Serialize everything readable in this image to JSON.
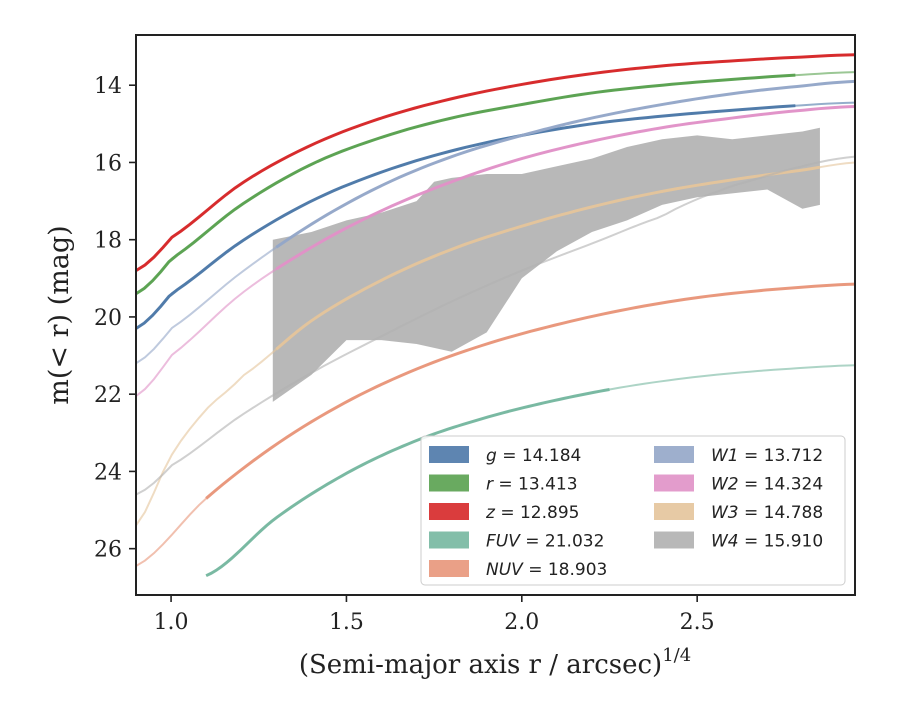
{
  "chart_data": {
    "type": "line",
    "title": "",
    "xlabel": "(Semi-major axis r / arcsec)",
    "xlabel_sup": "1/4",
    "ylabel": "m(< r) (mag)",
    "xlim": [
      0.9,
      2.95
    ],
    "ylim": [
      27.2,
      12.7
    ],
    "y_inverted": true,
    "grid": false,
    "legend_position": "lower-right",
    "xticks": [
      1.0,
      1.5,
      2.0,
      2.5
    ],
    "xtick_labels": [
      "1.0",
      "1.5",
      "2.0",
      "2.5"
    ],
    "yticks": [
      14,
      16,
      18,
      20,
      22,
      24,
      26
    ],
    "ytick_labels": [
      "14",
      "16",
      "18",
      "20",
      "22",
      "24",
      "26"
    ],
    "series": [
      {
        "name": "g",
        "legend_label": "g = 14.184",
        "color": "#4c78a8",
        "type": "curve",
        "x_fit": [
          0.9,
          1.0,
          1.2,
          1.4,
          1.6,
          1.8,
          2.0,
          2.2,
          2.4,
          2.6,
          2.8,
          2.95
        ],
        "y_fit": [
          20.3,
          19.4,
          18.05,
          17.0,
          16.25,
          15.7,
          15.3,
          15.0,
          14.8,
          14.65,
          14.52,
          14.45
        ],
        "x_data_range": [
          0.9,
          2.78
        ]
      },
      {
        "name": "r",
        "legend_label": "r = 13.413",
        "color": "#59a14f",
        "type": "curve",
        "x_fit": [
          0.9,
          1.0,
          1.2,
          1.4,
          1.6,
          1.8,
          2.0,
          2.2,
          2.4,
          2.6,
          2.8,
          2.95
        ],
        "y_fit": [
          19.4,
          18.5,
          17.1,
          16.05,
          15.35,
          14.85,
          14.5,
          14.2,
          14.0,
          13.85,
          13.73,
          13.66
        ],
        "x_data_range": [
          0.9,
          2.78
        ]
      },
      {
        "name": "z",
        "legend_label": "z = 12.895",
        "color": "#d62728",
        "type": "curve",
        "x_fit": [
          0.9,
          1.0,
          1.2,
          1.4,
          1.6,
          1.8,
          2.0,
          2.2,
          2.4,
          2.6,
          2.8,
          2.95
        ],
        "y_fit": [
          18.8,
          17.95,
          16.55,
          15.55,
          14.85,
          14.35,
          13.98,
          13.7,
          13.5,
          13.37,
          13.27,
          13.21
        ],
        "x_data_range": [
          0.9,
          2.95
        ]
      },
      {
        "name": "FUV",
        "legend_label": "FUV = 21.032",
        "color": "#76b7a0",
        "type": "curve",
        "x_fit": [
          1.1,
          1.3,
          1.5,
          1.7,
          1.9,
          2.1,
          2.3,
          2.5,
          2.7,
          2.95
        ],
        "y_fit": [
          26.7,
          25.2,
          24.05,
          23.2,
          22.6,
          22.15,
          21.8,
          21.55,
          21.38,
          21.25
        ],
        "x_data_range": [
          1.1,
          2.25
        ]
      },
      {
        "name": "NUV",
        "legend_label": "NUV = 18.903",
        "color": "#e8967a",
        "type": "curve",
        "x_fit": [
          0.9,
          1.1,
          1.3,
          1.5,
          1.7,
          1.9,
          2.1,
          2.3,
          2.5,
          2.7,
          2.95
        ],
        "y_fit": [
          26.45,
          24.7,
          23.3,
          22.2,
          21.35,
          20.7,
          20.2,
          19.8,
          19.5,
          19.3,
          19.15
        ],
        "x_data_range": [
          1.1,
          2.95
        ]
      },
      {
        "name": "W1",
        "legend_label": "W1 = 13.712",
        "color": "#94a6c8",
        "type": "curve",
        "x_fit": [
          0.9,
          1.0,
          1.2,
          1.4,
          1.6,
          1.8,
          2.0,
          2.2,
          2.4,
          2.6,
          2.8,
          2.95
        ],
        "y_fit": [
          21.2,
          20.3,
          18.85,
          17.6,
          16.6,
          15.85,
          15.3,
          14.85,
          14.5,
          14.22,
          14.02,
          13.9
        ],
        "x_data_range": [
          1.3,
          2.95
        ]
      },
      {
        "name": "W2",
        "legend_label": "W2 = 14.324",
        "color": "#e091c7",
        "type": "curve",
        "x_fit": [
          0.9,
          1.0,
          1.2,
          1.4,
          1.6,
          1.8,
          2.0,
          2.2,
          2.4,
          2.6,
          2.8,
          2.95
        ],
        "y_fit": [
          22.05,
          21.0,
          19.4,
          18.2,
          17.25,
          16.5,
          15.9,
          15.45,
          15.1,
          14.85,
          14.65,
          14.55
        ],
        "x_data_range": [
          1.3,
          2.95
        ]
      },
      {
        "name": "W3",
        "legend_label": "W3 = 14.788",
        "color": "#e4c49b",
        "type": "curve",
        "x_fit": [
          0.9,
          1.0,
          1.1,
          1.2,
          1.4,
          1.6,
          1.8,
          2.0,
          2.2,
          2.4,
          2.6,
          2.8,
          2.95
        ],
        "y_fit": [
          25.4,
          23.6,
          22.4,
          21.55,
          20.1,
          19.05,
          18.25,
          17.65,
          17.15,
          16.75,
          16.45,
          16.2,
          16.0
        ],
        "x_data_range": [
          1.3,
          2.85
        ]
      },
      {
        "name": "W4",
        "legend_label": "W4 = 15.910",
        "color": "#b0b0b0",
        "type": "band",
        "x_fit": [
          0.9,
          1.0,
          1.2,
          1.4,
          1.6,
          1.8,
          2.0,
          2.2,
          2.4,
          2.5,
          2.6,
          2.8,
          2.95
        ],
        "y_fit": [
          24.6,
          23.85,
          22.55,
          21.45,
          20.5,
          19.6,
          18.8,
          18.1,
          17.4,
          16.95,
          16.6,
          16.1,
          15.85
        ],
        "band_x": [
          1.29,
          1.4,
          1.5,
          1.6,
          1.7,
          1.75,
          1.8,
          1.9,
          2.0,
          2.1,
          2.2,
          2.3,
          2.4,
          2.5,
          2.6,
          2.7,
          2.8,
          2.85
        ],
        "band_upper": [
          18.0,
          17.8,
          17.5,
          17.3,
          17.0,
          16.5,
          16.4,
          16.3,
          16.3,
          16.1,
          15.9,
          15.6,
          15.4,
          15.3,
          15.4,
          15.3,
          15.2,
          15.1
        ],
        "band_lower": [
          22.2,
          21.5,
          20.6,
          20.6,
          20.7,
          20.8,
          20.9,
          20.4,
          19.0,
          18.3,
          17.8,
          17.5,
          17.1,
          16.9,
          16.8,
          16.7,
          17.2,
          17.1
        ]
      }
    ],
    "legend": {
      "columns": [
        [
          "g = 14.184",
          "r = 13.413",
          "z = 12.895",
          "FUV = 21.032",
          "NUV = 18.903"
        ],
        [
          "W1 = 13.712",
          "W2 = 14.324",
          "W3 = 14.788",
          "W4 = 15.910"
        ]
      ]
    }
  }
}
